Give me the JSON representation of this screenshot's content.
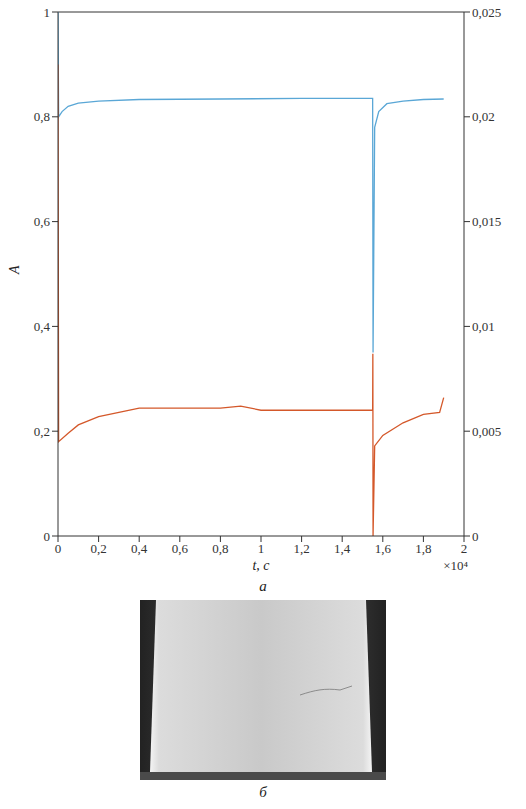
{
  "chart_data": {
    "type": "line",
    "x_label": "t, с",
    "y_label": "A",
    "annotations": [
      "×10⁴"
    ],
    "xlim": [
      0,
      2
    ],
    "xticks": [
      0,
      {
        "value": 0.2,
        "label": "0,2"
      },
      {
        "value": 0.4,
        "label": "0,4"
      },
      {
        "value": 0.6,
        "label": "0,6"
      },
      {
        "value": 0.8,
        "label": "0,8"
      },
      1,
      {
        "value": 1.2,
        "label": "1,2"
      },
      {
        "value": 1.4,
        "label": "1,4"
      },
      {
        "value": 1.6,
        "label": "1,6"
      },
      {
        "value": 1.8,
        "label": "1,8"
      },
      2
    ],
    "ylim": [
      0,
      1
    ],
    "yticks": [
      0,
      {
        "value": 0.2,
        "label": "0,2"
      },
      {
        "value": 0.4,
        "label": "0,4"
      },
      {
        "value": 0.6,
        "label": "0,6"
      },
      {
        "value": 0.8,
        "label": "0,8"
      },
      1
    ],
    "y2lim": [
      0,
      0.025
    ],
    "y2ticks": [
      0,
      {
        "value": 0.005,
        "label": "0,005"
      },
      {
        "value": 0.01,
        "label": "0,01"
      },
      {
        "value": 0.015,
        "label": "0,015"
      },
      {
        "value": 0.02,
        "label": "0,02"
      },
      {
        "value": 0.025,
        "label": "0,025"
      }
    ],
    "grid": false,
    "series": [
      {
        "color": "#5AA7D6",
        "x": [
          0,
          0.003,
          0.02,
          0.05,
          0.1,
          0.2,
          0.4,
          0.8,
          1.2,
          1.55,
          1.552,
          1.56,
          1.58,
          1.62,
          1.7,
          1.8,
          1.9
        ],
        "values": [
          1.0,
          0.8,
          0.81,
          0.82,
          0.826,
          0.83,
          0.833,
          0.834,
          0.835,
          0.835,
          0.35,
          0.78,
          0.81,
          0.825,
          0.83,
          0.833,
          0.834
        ]
      },
      {
        "color": "#D4582A",
        "axis": "y2",
        "x": [
          0,
          0.003,
          0.05,
          0.1,
          0.2,
          0.3,
          0.4,
          0.6,
          0.8,
          0.9,
          1.0,
          1.2,
          1.4,
          1.55,
          1.551,
          1.552,
          1.56,
          1.6,
          1.7,
          1.8,
          1.88,
          1.9
        ],
        "values": [
          0.0225,
          0.0045,
          0.0049,
          0.0053,
          0.0057,
          0.0059,
          0.0061,
          0.0061,
          0.0061,
          0.0062,
          0.006,
          0.006,
          0.006,
          0.006,
          0.0087,
          0,
          0.0043,
          0.0048,
          0.0054,
          0.0058,
          0.0059,
          0.0066
        ]
      }
    ]
  },
  "panel_labels": [
    "а",
    "б"
  ]
}
